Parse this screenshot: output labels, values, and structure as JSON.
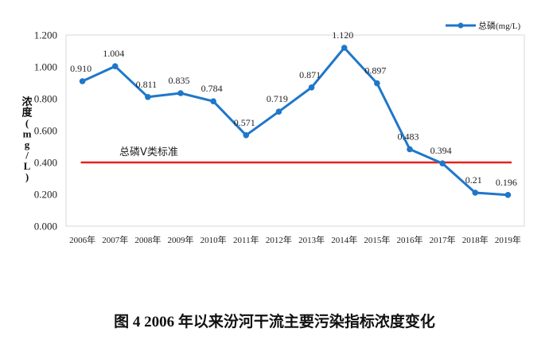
{
  "chart_data": {
    "type": "line",
    "categories": [
      "2006年",
      "2007年",
      "2008年",
      "2009年",
      "2010年",
      "2011年",
      "2012年",
      "2013年",
      "2014年",
      "2015年",
      "2016年",
      "2017年",
      "2018年",
      "2019年"
    ],
    "series": [
      {
        "name": "总磷(mg/L)",
        "values": [
          0.91,
          1.004,
          0.811,
          0.835,
          0.784,
          0.571,
          0.719,
          0.871,
          1.12,
          0.897,
          0.483,
          0.394,
          0.21,
          0.196
        ],
        "labels": [
          "0.910",
          "1.004",
          "0.811",
          "0.835",
          "0.784",
          "0.571",
          "0.719",
          "0.871",
          "1.120",
          "0.897",
          "0.483",
          "0.394",
          "0.21",
          "0.196"
        ],
        "color": "#1F77C9"
      }
    ],
    "reference_line": {
      "label": "总磷Ⅴ类标准",
      "value": 0.4,
      "color": "#E8201C"
    },
    "ylim": [
      0,
      1.2
    ],
    "yticks": [
      "0.000",
      "0.200",
      "0.400",
      "0.600",
      "0.800",
      "1.000",
      "1.200"
    ],
    "ylabel_chars": [
      "浓",
      "度",
      "(",
      "m",
      "g",
      "/",
      "L",
      ")"
    ],
    "xlabel": "",
    "legend_position": "top-right",
    "grid": false,
    "title": "图 4    2006 年以来汾河干流主要污染指标浓度变化"
  }
}
